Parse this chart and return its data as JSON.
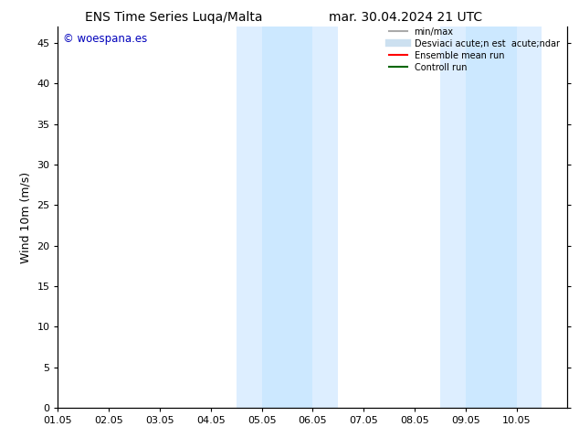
{
  "title_left": "ENS Time Series Luqa/Malta",
  "title_right": "mar. 30.04.2024 21 UTC",
  "ylabel": "Wind 10m (m/s)",
  "xlim": [
    0,
    10
  ],
  "ylim": [
    0,
    47
  ],
  "yticks": [
    0,
    5,
    10,
    15,
    20,
    25,
    30,
    35,
    40,
    45
  ],
  "xtick_labels": [
    "01.05",
    "02.05",
    "03.05",
    "04.05",
    "05.05",
    "06.05",
    "07.05",
    "08.05",
    "09.05",
    "10.05"
  ],
  "shaded_bands": [
    {
      "xmin": 3.5,
      "xmax": 4.0,
      "color": "#ddeeff"
    },
    {
      "xmin": 4.0,
      "xmax": 5.0,
      "color": "#cce8ff"
    },
    {
      "xmin": 5.0,
      "xmax": 5.5,
      "color": "#ddeeff"
    },
    {
      "xmin": 7.5,
      "xmax": 8.0,
      "color": "#ddeeff"
    },
    {
      "xmin": 8.0,
      "xmax": 9.0,
      "color": "#cce8ff"
    },
    {
      "xmin": 9.0,
      "xmax": 9.5,
      "color": "#ddeeff"
    }
  ],
  "watermark_text": "© woespana.es",
  "watermark_color": "#0000bb",
  "bg_color": "#ffffff",
  "legend_entries": [
    {
      "label": "min/max",
      "color": "#aaaaaa",
      "lw": 1.5,
      "ls": "-"
    },
    {
      "label": "Desviaci acute;n est  acute;ndar",
      "color": "#cce0f0",
      "lw": 6,
      "ls": "-"
    },
    {
      "label": "Ensemble mean run",
      "color": "#ff0000",
      "lw": 1.5,
      "ls": "-"
    },
    {
      "label": "Controll run",
      "color": "#006600",
      "lw": 1.5,
      "ls": "-"
    }
  ],
  "title_fontsize": 10,
  "tick_fontsize": 8,
  "ylabel_fontsize": 9
}
